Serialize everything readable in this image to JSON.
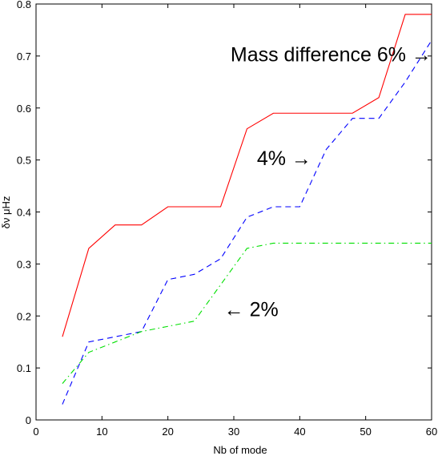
{
  "chart_data": {
    "type": "line",
    "xlabel": "Nb of mode",
    "ylabel": "δν μHz",
    "xlim": [
      0,
      60
    ],
    "ylim": [
      0,
      0.8
    ],
    "xticks": [
      "0",
      "10",
      "20",
      "30",
      "40",
      "50",
      "60"
    ],
    "yticks": [
      "0",
      "0.1",
      "0.2",
      "0.3",
      "0.4",
      "0.5",
      "0.6",
      "0.7",
      "0.8"
    ],
    "grid": false,
    "series": [
      {
        "color": "#ff0000",
        "style": "solid",
        "points": [
          [
            4,
            0.16
          ],
          [
            8,
            0.33
          ],
          [
            12,
            0.375
          ],
          [
            16,
            0.375
          ],
          [
            20,
            0.41
          ],
          [
            24,
            0.41
          ],
          [
            28,
            0.41
          ],
          [
            32,
            0.56
          ],
          [
            36,
            0.59
          ],
          [
            40,
            0.59
          ],
          [
            44,
            0.59
          ],
          [
            48,
            0.59
          ],
          [
            52,
            0.62
          ],
          [
            56,
            0.78
          ],
          [
            60,
            0.78
          ]
        ]
      },
      {
        "color": "#0000ff",
        "style": "dashed",
        "points": [
          [
            4,
            0.03
          ],
          [
            8,
            0.15
          ],
          [
            12,
            0.16
          ],
          [
            16,
            0.17
          ],
          [
            20,
            0.27
          ],
          [
            24,
            0.28
          ],
          [
            28,
            0.31
          ],
          [
            32,
            0.39
          ],
          [
            36,
            0.41
          ],
          [
            40,
            0.41
          ],
          [
            44,
            0.52
          ],
          [
            48,
            0.58
          ],
          [
            52,
            0.58
          ],
          [
            56,
            0.65
          ],
          [
            60,
            0.73
          ]
        ]
      },
      {
        "color": "#00e000",
        "style": "dashdot",
        "points": [
          [
            4,
            0.07
          ],
          [
            8,
            0.13
          ],
          [
            12,
            0.15
          ],
          [
            16,
            0.17
          ],
          [
            20,
            0.18
          ],
          [
            24,
            0.19
          ],
          [
            28,
            0.26
          ],
          [
            32,
            0.33
          ],
          [
            36,
            0.34
          ],
          [
            40,
            0.34
          ],
          [
            44,
            0.34
          ],
          [
            48,
            0.34
          ],
          [
            52,
            0.34
          ],
          [
            56,
            0.34
          ],
          [
            60,
            0.34
          ]
        ]
      }
    ],
    "annotations": [
      {
        "text": "Mass difference 6% →",
        "x": 29.5,
        "y": 0.69
      },
      {
        "text": "4% →",
        "x": 33.5,
        "y": 0.49
      },
      {
        "text": "← 2%",
        "x": 28.5,
        "y": 0.2
      }
    ]
  }
}
